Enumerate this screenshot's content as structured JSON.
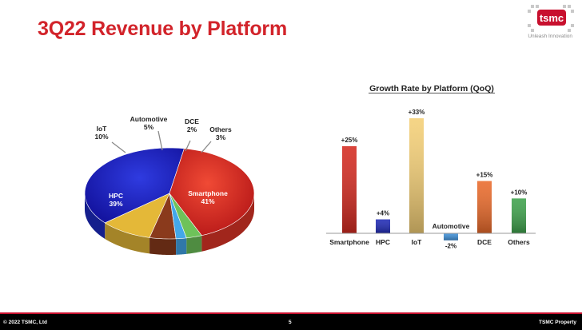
{
  "slide": {
    "title": "3Q22 Revenue by Platform",
    "logo": {
      "text": "tsmc",
      "tagline": "Unleash Innovation"
    },
    "footer": {
      "copyright": "© 2022 TSMC, Ltd",
      "page_number": "5",
      "property": "TSMC Property"
    },
    "colors": {
      "title": "#d2232a",
      "footer_bg": "#000000",
      "footer_line": "#c8102e"
    }
  },
  "chart_data": [
    {
      "type": "pie",
      "title": "",
      "categories": [
        "Smartphone",
        "HPC",
        "IoT",
        "Automotive",
        "DCE",
        "Others"
      ],
      "values": [
        41,
        39,
        10,
        5,
        2,
        3
      ],
      "labels": [
        "41%",
        "39%",
        "10%",
        "5%",
        "2%",
        "3%"
      ],
      "colors": [
        "#e03527",
        "#1d2bc4",
        "#e4b838",
        "#8a3a1c",
        "#43a7e9",
        "#6ec25a"
      ],
      "legend": "none"
    },
    {
      "type": "bar",
      "title": "Growth Rate by Platform (QoQ)",
      "categories": [
        "Smartphone",
        "HPC",
        "IoT",
        "Automotive",
        "DCE",
        "Others"
      ],
      "values": [
        25,
        4,
        33,
        -2,
        15,
        10
      ],
      "labels": [
        "+25%",
        "+4%",
        "+33%",
        "-2%",
        "+15%",
        "+10%"
      ],
      "colors": [
        "#d42a20",
        "#1f2ab5",
        "#f4cf76",
        "#3e8fd6",
        "#ea6a2a",
        "#3ea24c"
      ],
      "xlabel": "",
      "ylabel": "",
      "ylim": [
        -5,
        36
      ],
      "grid": false
    }
  ]
}
